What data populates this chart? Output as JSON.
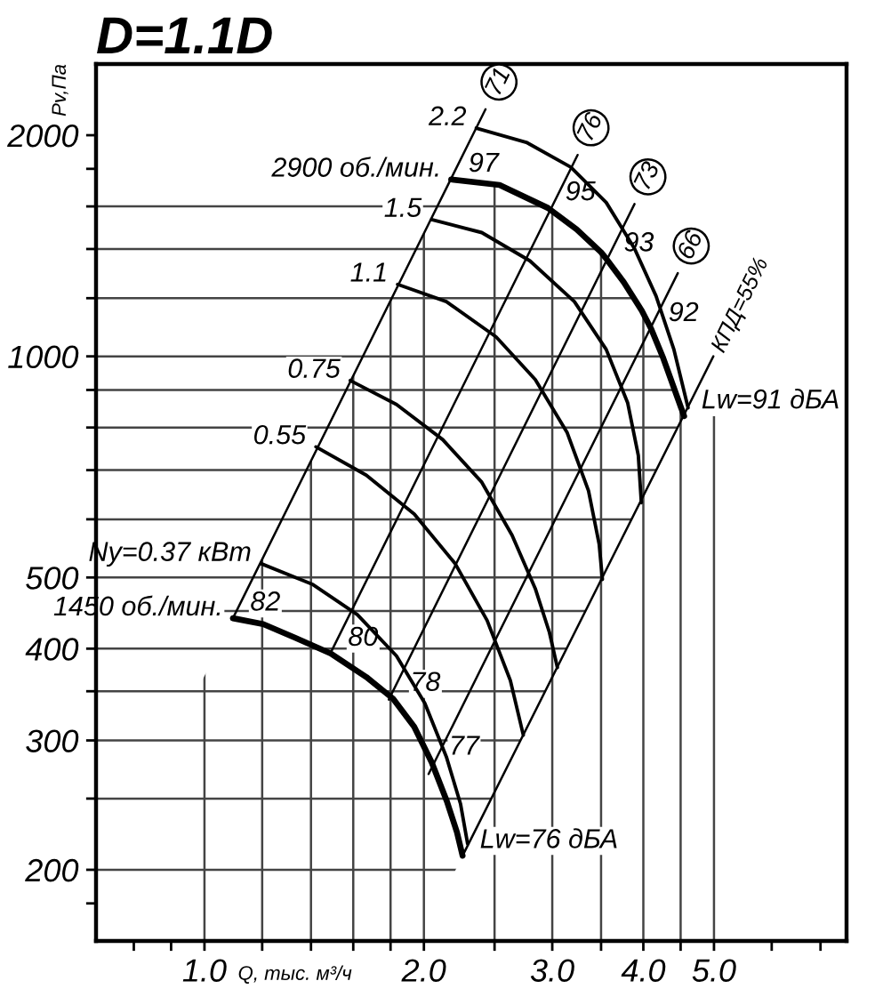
{
  "chart_data": {
    "type": "line",
    "title": "D=1.1D",
    "xlabel": "Q, тыс. м³/ч",
    "ylabel": "Pv,Па",
    "log": "xy",
    "grid": true,
    "xlim": [
      0.71,
      7.6
    ],
    "ylim": [
      160,
      2500
    ],
    "xticks": [
      {
        "value": 0.8,
        "label": null
      },
      {
        "value": 0.9,
        "label": null
      },
      {
        "value": 1,
        "label": "1.0"
      },
      {
        "value": 1.2,
        "label": null
      },
      {
        "value": 1.4,
        "label": null
      },
      {
        "value": 1.6,
        "label": null
      },
      {
        "value": 1.8,
        "label": null
      },
      {
        "value": 2,
        "label": "2.0"
      },
      {
        "value": 2.5,
        "label": null
      },
      {
        "value": 3,
        "label": "3.0"
      },
      {
        "value": 3.5,
        "label": null
      },
      {
        "value": 4,
        "label": "4.0"
      },
      {
        "value": 4.5,
        "label": null
      },
      {
        "value": 5,
        "label": "5.0"
      },
      {
        "value": 6,
        "label": null
      },
      {
        "value": 7,
        "label": null
      }
    ],
    "yticks": [
      {
        "value": 180,
        "label": null
      },
      200,
      {
        "value": 250,
        "label": null
      },
      300,
      {
        "value": 350,
        "label": null
      },
      400,
      {
        "value": 450,
        "label": null
      },
      500,
      {
        "value": 600,
        "label": null
      },
      {
        "value": 700,
        "label": null
      },
      {
        "value": 800,
        "label": null
      },
      {
        "value": 900,
        "label": null
      },
      1000,
      {
        "value": 1200,
        "label": null
      },
      {
        "value": 1400,
        "label": null
      },
      {
        "value": 1600,
        "label": null
      },
      {
        "value": 1800,
        "label": null
      },
      2000
    ],
    "series": [
      {
        "name": "2900 об./мин.",
        "color": "#000000",
        "x": [
          2.18,
          2.54,
          2.96,
          3.24,
          3.5,
          3.56,
          3.76,
          3.98,
          4.1,
          4.26,
          4.55
        ],
        "values": [
          1741,
          1711,
          1592,
          1489,
          1386,
          1357,
          1262,
          1154,
          1090,
          994,
          829
        ]
      },
      {
        "name": "1450 об./мин.",
        "color": "#000000",
        "x": [
          1.094,
          1.204,
          1.331,
          1.49,
          1.667,
          1.814,
          1.94,
          2.05,
          2.15,
          2.22,
          2.26
        ],
        "values": [
          440,
          432,
          414,
          394,
          366,
          342,
          313,
          280,
          248,
          225,
          209
        ]
      },
      {
        "name": "2.2",
        "color": "#000000",
        "x": [
          2.36,
          2.764,
          3.18,
          3.557,
          3.89,
          4.164,
          4.405,
          4.607
        ],
        "values": [
          2045,
          1956,
          1810,
          1620,
          1402,
          1208,
          1022,
          851
        ]
      },
      {
        "name": "1.5",
        "color": "#000000",
        "x": [
          2.049,
          2.401,
          2.795,
          3.217,
          3.557,
          3.806,
          3.937,
          3.975
        ],
        "values": [
          1535,
          1474,
          1349,
          1187,
          1022,
          865,
          733,
          632
        ]
      },
      {
        "name": "1.1",
        "color": "#000000",
        "x": [
          1.841,
          2.147,
          2.512,
          2.843,
          3.145,
          3.364,
          3.479,
          3.515
        ],
        "values": [
          1253,
          1187,
          1063,
          930,
          787,
          656,
          555,
          497
        ]
      },
      {
        "name": "0.75",
        "color": "#000000",
        "x": [
          1.585,
          1.834,
          2.123,
          2.401,
          2.642,
          2.843,
          2.973,
          3.049
        ],
        "values": [
          927,
          860,
          770,
          674,
          571,
          483,
          421,
          377
        ]
      },
      {
        "name": "0.55",
        "color": "#000000",
        "x": [
          1.422,
          1.667,
          1.94,
          2.208,
          2.442,
          2.628,
          2.738
        ],
        "values": [
          753,
          689,
          610,
          522,
          437,
          362,
          305
        ]
      },
      {
        "name": "Ny=0.37 кВт",
        "color": "#000000",
        "x": [
          1.197,
          1.409,
          1.621,
          1.834,
          2.006,
          2.147,
          2.245,
          2.296
        ],
        "values": [
          522,
          489,
          445,
          391,
          337,
          285,
          246,
          217
        ]
      },
      {
        "name": "71",
        "color": "#000000",
        "x": [
          1.094,
          2.43
        ],
        "values": [
          440,
          2170
        ]
      },
      {
        "name": "76",
        "color": "#000000",
        "x": [
          1.49,
          3.25
        ],
        "values": [
          395,
          1880
        ]
      },
      {
        "name": "73",
        "color": "#000000",
        "x": [
          1.79,
          3.89
        ],
        "values": [
          341,
          1612
        ]
      },
      {
        "name": "66",
        "color": "#000000",
        "x": [
          2.03,
          4.46
        ],
        "values": [
          270,
          1298
        ]
      },
      {
        "name": "КПД=55%",
        "color": "#000000",
        "x": [
          2.26,
          4.99
        ],
        "values": [
          209,
          1000
        ]
      }
    ],
    "annotations": [
      {
        "text": "97",
        "x": 2.18,
        "y": 1741
      },
      {
        "text": "95",
        "x": 2.96,
        "y": 1592
      },
      {
        "text": "93",
        "x": 3.56,
        "y": 1357
      },
      {
        "text": "92",
        "x": 4.1,
        "y": 1090
      },
      {
        "text": "Lw=91 дБА",
        "x": 4.55,
        "y": 829
      },
      {
        "text": "82",
        "x": 1.094,
        "y": 440
      },
      {
        "text": "80",
        "x": 1.49,
        "y": 394
      },
      {
        "text": "78",
        "x": 1.814,
        "y": 342
      },
      {
        "text": "77",
        "x": 2.05,
        "y": 280
      },
      {
        "text": "Lw=76 дБА",
        "x": 2.26,
        "y": 209
      }
    ]
  }
}
